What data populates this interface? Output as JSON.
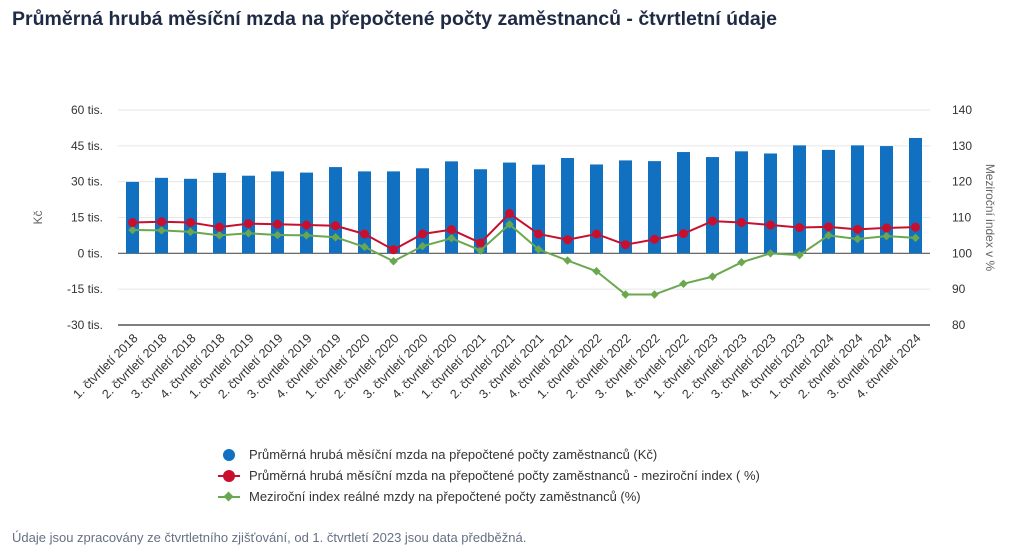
{
  "title": "Průměrná hrubá měsíční mzda na přepočtené počty zaměstnanců - čtvrtletní údaje",
  "note": "Údaje jsou zpracovány ze čtvrtletního zjišťování, od 1. čtvrtletí 2023 jsou data předběžná.",
  "colors": {
    "bars": "#1170c0",
    "nominal_index": "#c8102e",
    "real_index": "#6aa84f",
    "axis": "#333333",
    "grid": "#e6e6e6"
  },
  "chart_data": {
    "type": "bar",
    "categories": [
      "1. čtvrtletí 2018",
      "2. čtvrtletí 2018",
      "3. čtvrtletí 2018",
      "4. čtvrtletí 2018",
      "1. čtvrtletí 2019",
      "2. čtvrtletí 2019",
      "3. čtvrtletí 2019",
      "4. čtvrtletí 2019",
      "1. čtvrtletí 2020",
      "2. čtvrtletí 2020",
      "3. čtvrtletí 2020",
      "4. čtvrtletí 2020",
      "1. čtvrtletí 2021",
      "2. čtvrtletí 2021",
      "3. čtvrtletí 2021",
      "4. čtvrtletí 2021",
      "1. čtvrtletí 2022",
      "2. čtvrtletí 2022",
      "3. čtvrtletí 2022",
      "4. čtvrtletí 2022",
      "1. čtvrtletí 2023",
      "2. čtvrtletí 2023",
      "3. čtvrtletí 2023",
      "4. čtvrtletí 2023",
      "1. čtvrtletí 2024",
      "2. čtvrtletí 2024",
      "3. čtvrtletí 2024",
      "4. čtvrtletí 2024"
    ],
    "y_left": {
      "label": "Kč",
      "range": [
        -30000,
        60000
      ],
      "ticks": [
        60000,
        45000,
        30000,
        15000,
        0,
        -15000,
        -30000
      ],
      "tick_labels": [
        "60 tis.",
        "45 tis.",
        "30 tis.",
        "15 tis.",
        "0 tis.",
        "-15 tis.",
        "-30 tis."
      ]
    },
    "y_right": {
      "label": "Meziroční index v %",
      "range": [
        80,
        140
      ],
      "ticks": [
        140,
        130,
        120,
        110,
        100,
        90,
        80
      ],
      "tick_labels": [
        "140",
        "130",
        "120",
        "110",
        "100",
        "90",
        "80"
      ]
    },
    "series": [
      {
        "name": "Průměrná hrubá měsíční mzda na přepočtené počty zaměstnanců (Kč)",
        "type": "bar",
        "axis": "left",
        "values": [
          29900,
          31600,
          31200,
          33700,
          32500,
          34300,
          33800,
          36100,
          34300,
          34300,
          35600,
          38500,
          35200,
          38000,
          37100,
          39900,
          37200,
          38900,
          38600,
          42400,
          40300,
          42700,
          41800,
          45200,
          43300,
          45200,
          44900,
          48300
        ]
      },
      {
        "name": "Průměrná hrubá měsíční mzda na přepočtené počty zaměstnanců - meziroční index ( %)",
        "type": "line",
        "axis": "right",
        "values": [
          108.6,
          108.8,
          108.6,
          107.3,
          108.3,
          108.1,
          107.9,
          107.7,
          105.4,
          101.0,
          105.4,
          106.6,
          102.9,
          111.1,
          105.4,
          103.8,
          105.4,
          102.4,
          103.9,
          105.5,
          109.0,
          108.6,
          107.9,
          107.2,
          107.4,
          106.7,
          107.1,
          107.3
        ]
      },
      {
        "name": "Meziroční index reálné mzdy na přepočtené počty zaměstnanců (%)",
        "type": "line",
        "axis": "right",
        "values": [
          106.5,
          106.4,
          106.0,
          105.0,
          105.6,
          105.1,
          105.0,
          104.5,
          101.8,
          97.8,
          102.0,
          104.2,
          100.8,
          108.1,
          101.1,
          98.0,
          95.0,
          88.5,
          88.5,
          91.5,
          93.5,
          97.5,
          100.0,
          99.5,
          105.0,
          104.0,
          104.8,
          104.3
        ]
      }
    ]
  }
}
